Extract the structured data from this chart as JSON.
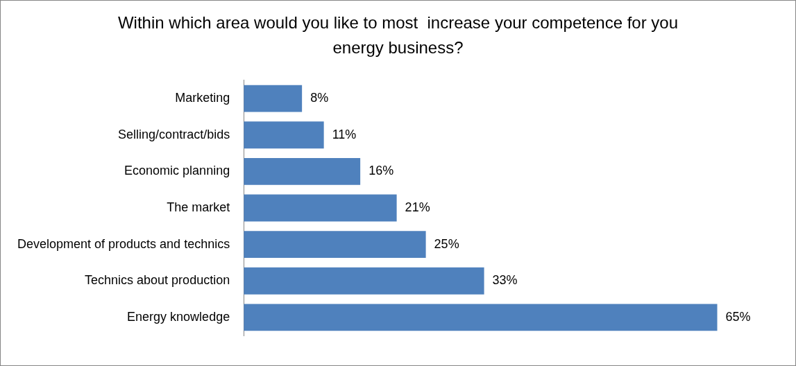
{
  "chart_data": {
    "type": "bar",
    "orientation": "horizontal",
    "title": "Within which area would you like to most  increase your competence for you energy business?",
    "categories": [
      "Marketing",
      "Selling/contract/bids",
      "Economic planning",
      "The market",
      "Development of products and technics",
      "Technics about production",
      "Energy knowledge"
    ],
    "values": [
      8,
      11,
      16,
      21,
      25,
      33,
      65
    ],
    "value_labels": [
      "8%",
      "11%",
      "16%",
      "21%",
      "25%",
      "33%",
      "65%"
    ],
    "color": "#4f81bd",
    "tick_labels": "y",
    "grid": false,
    "legend": false
  }
}
